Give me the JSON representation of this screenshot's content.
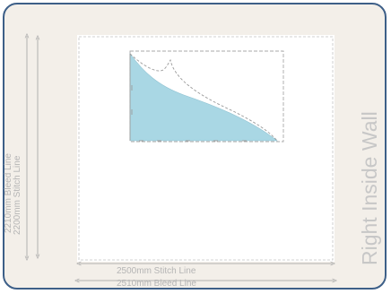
{
  "wall": {
    "title": "Right Inside Wall"
  },
  "dimensions": {
    "vertical_bleed": "2210mm Bleed Line",
    "vertical_stitch": "2200mm Stitch Line",
    "horizontal_stitch": "2500mm Stitch Line",
    "horizontal_bleed": "2510mm Bleed Line"
  },
  "colors": {
    "frame_border": "#3d5f88",
    "frame_fill": "#f3efe9",
    "panel_fill": "#ffffff",
    "shape_fill": "#a9d7e4",
    "guide": "#bdbdbd"
  }
}
